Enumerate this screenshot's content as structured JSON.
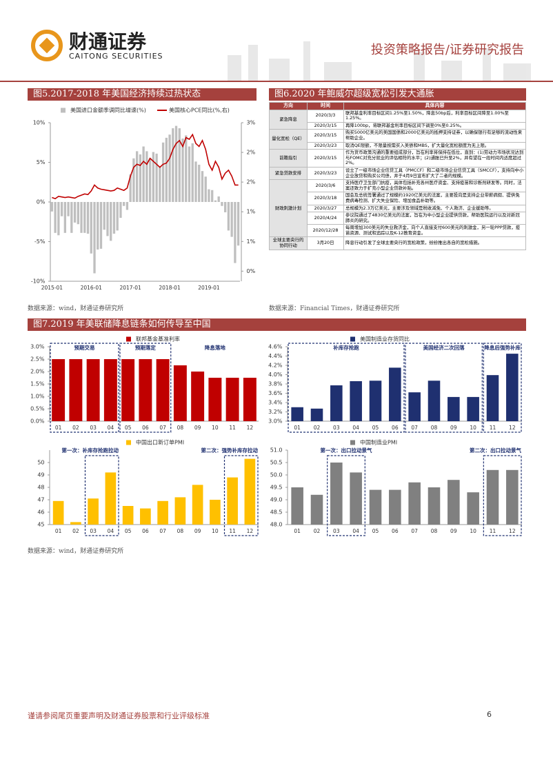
{
  "header": {
    "logo_cn": "财通证券",
    "logo_en": "CAITONG SECURITIES",
    "report_type": "投资策略报告/证券研究报告"
  },
  "figures": [
    {
      "title": "图5.2017-2018 年美国经济持续过热状态",
      "source": "数据来源：wind，财通证券研究所"
    },
    {
      "title": "图6.2020 年鲍威尔超级宽松引发大通胀",
      "source": "数据来源：Financial Times，财通证券研究所"
    },
    {
      "title": "图7.2019 年美联储降息链条如何传导至中国",
      "source": "数据来源：wind，财通证券研究所"
    }
  ],
  "table": {
    "columns": [
      "方向",
      "时间",
      "具体内容"
    ],
    "groups": [
      {
        "direction": "紧急降息",
        "items": [
          {
            "date": "2020/3/3",
            "content": "联邦基金利率目标区间1.25%至1.50%，降息50bp后，利率目标区间降至1.00%至1.25%。"
          },
          {
            "date": "2020/3/15",
            "content": "再降100bp，将联邦基金利率目标区间下调至0%至0.25%。"
          }
        ]
      },
      {
        "direction": "量化宽松（QE）",
        "items": [
          {
            "date": "2020/3/15",
            "content": "购买5000亿美元的美国国债和2000亿美元的抵押支持证券，以确保银行有足够的流动性来帮助企业。"
          },
          {
            "date": "2020/3/23",
            "content": "取消QE限额，不限量按需买入美债和MBS，扩大量化宽松额度为无上限。"
          }
        ]
      },
      {
        "direction": "前瞻指引",
        "items": [
          {
            "date": "2020/3/15",
            "content": "作为货币政策沟通的重要组成部分，旨在利率将保持在低位，直到：(1)劳动力市场状况达到与FOMC对充分就业的评估相符的水平；(2)通胀已升至2%，并有望在一段时间内适度超过2%。"
          }
        ]
      },
      {
        "direction": "紧急贷款安排",
        "items": [
          {
            "date": "2020/3/23",
            "content": "设立了一级市场企业信贷工具（PMCCF）和二级市场企业信贷工具（SMCCF），支持向中小企业放贷和购买公司债，并于4月9日宣布扩大了二者的规模。"
          }
        ]
      },
      {
        "direction": "财政刺激计划",
        "items": [
          {
            "date": "2020/3/6",
            "content": "支持医疗卫生部门抗疫，具体包括补充各州医疗资金、支持疫苗和诊断剂研发等。同时，法案还致力于扩充小型企业贷款补贴。"
          },
          {
            "date": "2020/3/18",
            "content": "国会及总统签署通过了规模约1920亿美元的法案，主要投向是支持企业带薪病假、提供免费病毒检测、扩大失业保险、增加食品补助等。"
          },
          {
            "date": "2020/3/27",
            "content": "总规模为2.3万亿美元，主要涉及领域是税收减免、个人救济、企业援助等。"
          },
          {
            "date": "2020/4/24",
            "content": "参议院通过了4830亿美元的法案，旨在为中小型企业提供贷款，帮助医院运行以及对新冠肺炎的研究。"
          },
          {
            "date": "2020/12/28",
            "content": "每周增加300美元的失业救济金，向个人直接支付600美元的刺激金，另一轮PPP贷款，疫苗资源、测试和追踪以及K-12教育资金。"
          }
        ]
      },
      {
        "direction": "全球主要央行的协同行动",
        "items": [
          {
            "date": "3月20日",
            "content": "降息行动引发了全球主要央行的宽松政策，纷纷推出各自的宽松措施。"
          }
        ]
      }
    ]
  },
  "chart_data": [
    {
      "type": "bar",
      "categories": [
        "2015-01",
        null,
        null,
        null,
        null,
        null,
        null,
        null,
        null,
        null,
        null,
        null,
        "2016-01",
        null,
        null,
        null,
        null,
        null,
        null,
        null,
        null,
        null,
        null,
        null,
        "2017-01",
        null,
        null,
        null,
        null,
        null,
        null,
        null,
        null,
        null,
        null,
        null,
        "2018-01",
        null,
        null,
        null,
        null,
        null,
        null,
        null,
        null,
        null,
        null,
        null,
        "2019-01",
        null,
        null,
        null,
        null,
        null,
        null,
        null,
        null,
        null
      ],
      "series": [
        {
          "name": "美国进口金额季调同比增速(%)",
          "type": "bar",
          "color": "#bfbfbf",
          "values": [
            -1.2,
            -3.9,
            -4.2,
            -1.8,
            -3.9,
            -1.8,
            -3.9,
            -2.6,
            -2.8,
            -3.9,
            -3.9,
            -4.0,
            -6.5,
            -9.0,
            -6.0,
            -5.9,
            -3.5,
            -4.3,
            -4.9,
            -4.0,
            -3.6,
            -2.0,
            -0.5,
            -1.0,
            3.5,
            5.5,
            6.4,
            6.0,
            7.0,
            6.4,
            5.5,
            6.3,
            6.1,
            4.5,
            7.5,
            8.1,
            8.5,
            9.3,
            9.6,
            9.3,
            8.0,
            8.4,
            7.0,
            7.4,
            5.1,
            4.7,
            3.9,
            3.2,
            1.6,
            1.5,
            0.2,
            0.7,
            -0.5,
            -1.3,
            -3.6,
            -4.4,
            -7.7,
            -5.5
          ]
        },
        {
          "name": "美国核心PCE同比(%,右)",
          "type": "line",
          "axis": "y2",
          "color": "#c00000",
          "values": [
            1.74,
            1.72,
            1.76,
            1.75,
            1.74,
            1.75,
            1.74,
            1.73,
            1.76,
            1.78,
            1.8,
            1.79,
            1.85,
            1.95,
            1.9,
            1.88,
            1.87,
            1.86,
            1.85,
            1.86,
            1.9,
            1.88,
            1.86,
            1.9,
            2.1,
            2.25,
            2.3,
            2.28,
            2.35,
            2.3,
            2.4,
            2.35,
            2.3,
            2.25,
            2.3,
            2.32,
            2.4,
            2.55,
            2.65,
            2.7,
            2.6,
            2.75,
            2.72,
            2.8,
            2.65,
            2.6,
            2.7,
            2.55,
            2.3,
            2.2,
            2.35,
            2.25,
            2.05,
            2.15,
            2.2,
            2.1,
            1.95,
            1.95
          ]
        }
      ],
      "ylim": [
        -10,
        10
      ],
      "yticks": [
        {
          "value": 10,
          "label": "10%"
        },
        {
          "value": 5,
          "label": "5%"
        },
        {
          "value": 0,
          "label": "0%"
        },
        {
          "value": -5,
          "label": "-5%"
        },
        {
          "value": -10,
          "label": "-10%"
        }
      ],
      "y2lim": [
        0.33,
        3
      ],
      "y2ticks": [
        {
          "value": 3,
          "label": "3%"
        },
        {
          "value": 2.5,
          "label": "2%"
        },
        {
          "value": 2,
          "label": "2%"
        },
        {
          "value": 1.5,
          "label": "1%"
        },
        {
          "value": 1,
          "label": "1%"
        },
        {
          "value": 0.5,
          "label": "0%"
        }
      ]
    },
    {
      "type": "bar",
      "categories": [
        "01",
        "02",
        "03",
        "04",
        "05",
        "06",
        "07",
        "08",
        "09",
        "10",
        "11",
        "12"
      ],
      "series": [
        {
          "name": "联邦基金基准利率",
          "color": "#c00000",
          "values": [
            2.5,
            2.5,
            2.5,
            2.5,
            2.5,
            2.5,
            2.5,
            2.25,
            2.0,
            1.75,
            1.75,
            1.75
          ]
        }
      ],
      "ylim": [
        0,
        3
      ],
      "yticks": [
        {
          "value": 0,
          "label": "0.0%"
        },
        {
          "value": 0.5,
          "label": "0.5%"
        },
        {
          "value": 1,
          "label": "1.0%"
        },
        {
          "value": 1.5,
          "label": "1.5%"
        },
        {
          "value": 2,
          "label": "2.0%"
        },
        {
          "value": 2.5,
          "label": "2.5%"
        },
        {
          "value": 3,
          "label": "3.0%"
        }
      ],
      "annotations": [
        "预期交易",
        "预期落定",
        "降息落地"
      ]
    },
    {
      "type": "bar",
      "categories": [
        "01",
        "02",
        "03",
        "04",
        "05",
        "06",
        "07",
        "08",
        "09",
        "10",
        "11",
        "12"
      ],
      "series": [
        {
          "name": "美国制造业存货同比",
          "color": "#1f3070",
          "values": [
            3.3,
            3.27,
            3.77,
            3.86,
            3.87,
            4.15,
            3.62,
            3.87,
            3.52,
            3.52,
            3.99,
            4.45
          ]
        }
      ],
      "ylim": [
        3,
        4.6
      ],
      "yticks": [
        {
          "value": 3,
          "label": "3.0%"
        },
        {
          "value": 3.2,
          "label": "3.2%"
        },
        {
          "value": 3.4,
          "label": "3.4%"
        },
        {
          "value": 3.6,
          "label": "3.6%"
        },
        {
          "value": 3.8,
          "label": "3.8%"
        },
        {
          "value": 4,
          "label": "4.0%"
        },
        {
          "value": 4.2,
          "label": "4.2%"
        },
        {
          "value": 4.4,
          "label": "4.4%"
        },
        {
          "value": 4.6,
          "label": "4.6%"
        }
      ],
      "annotations": [
        "补库存抢跑",
        "美国经济二次回落",
        "降息后强势补库"
      ]
    },
    {
      "type": "bar",
      "categories": [
        "01",
        "02",
        "03",
        "04",
        "05",
        "06",
        "07",
        "08",
        "09",
        "10",
        "11",
        "12"
      ],
      "series": [
        {
          "name": "中国出口新订单PMI",
          "color": "#ffc000",
          "values": [
            46.9,
            45.2,
            47.1,
            49.2,
            46.5,
            46.3,
            46.9,
            47.2,
            48.2,
            47.0,
            48.8,
            50.3
          ]
        }
      ],
      "ylim": [
        45,
        51
      ],
      "yticks": [
        45,
        46,
        47,
        48,
        49,
        50
      ],
      "annotations": [
        "第一次：补库存抢跑拉动",
        "第二次：强势补库存拉动"
      ]
    },
    {
      "type": "bar",
      "categories": [
        "01",
        "02",
        "03",
        "04",
        "05",
        "06",
        "07",
        "08",
        "09",
        "10",
        "11",
        "12"
      ],
      "series": [
        {
          "name": "中国制造业PMI",
          "color": "#808080",
          "values": [
            49.5,
            49.2,
            50.5,
            50.1,
            49.4,
            49.4,
            49.7,
            49.5,
            49.8,
            49.3,
            50.2,
            50.2
          ]
        }
      ],
      "ylim": [
        48,
        51
      ],
      "yticks": [
        {
          "value": 48,
          "label": "48.0"
        },
        48.5,
        {
          "value": 49,
          "label": "49.0"
        },
        49.5,
        {
          "value": 50,
          "label": "50.0"
        },
        50.5,
        {
          "value": 51,
          "label": "51.0"
        }
      ],
      "annotations": [
        "第一次：出口拉动景气",
        "第二次：出口拉动景气"
      ]
    }
  ],
  "footer": {
    "disclaimer": "谨请参阅尾页重要声明及财通证券股票和行业评级标准",
    "page": "6"
  }
}
